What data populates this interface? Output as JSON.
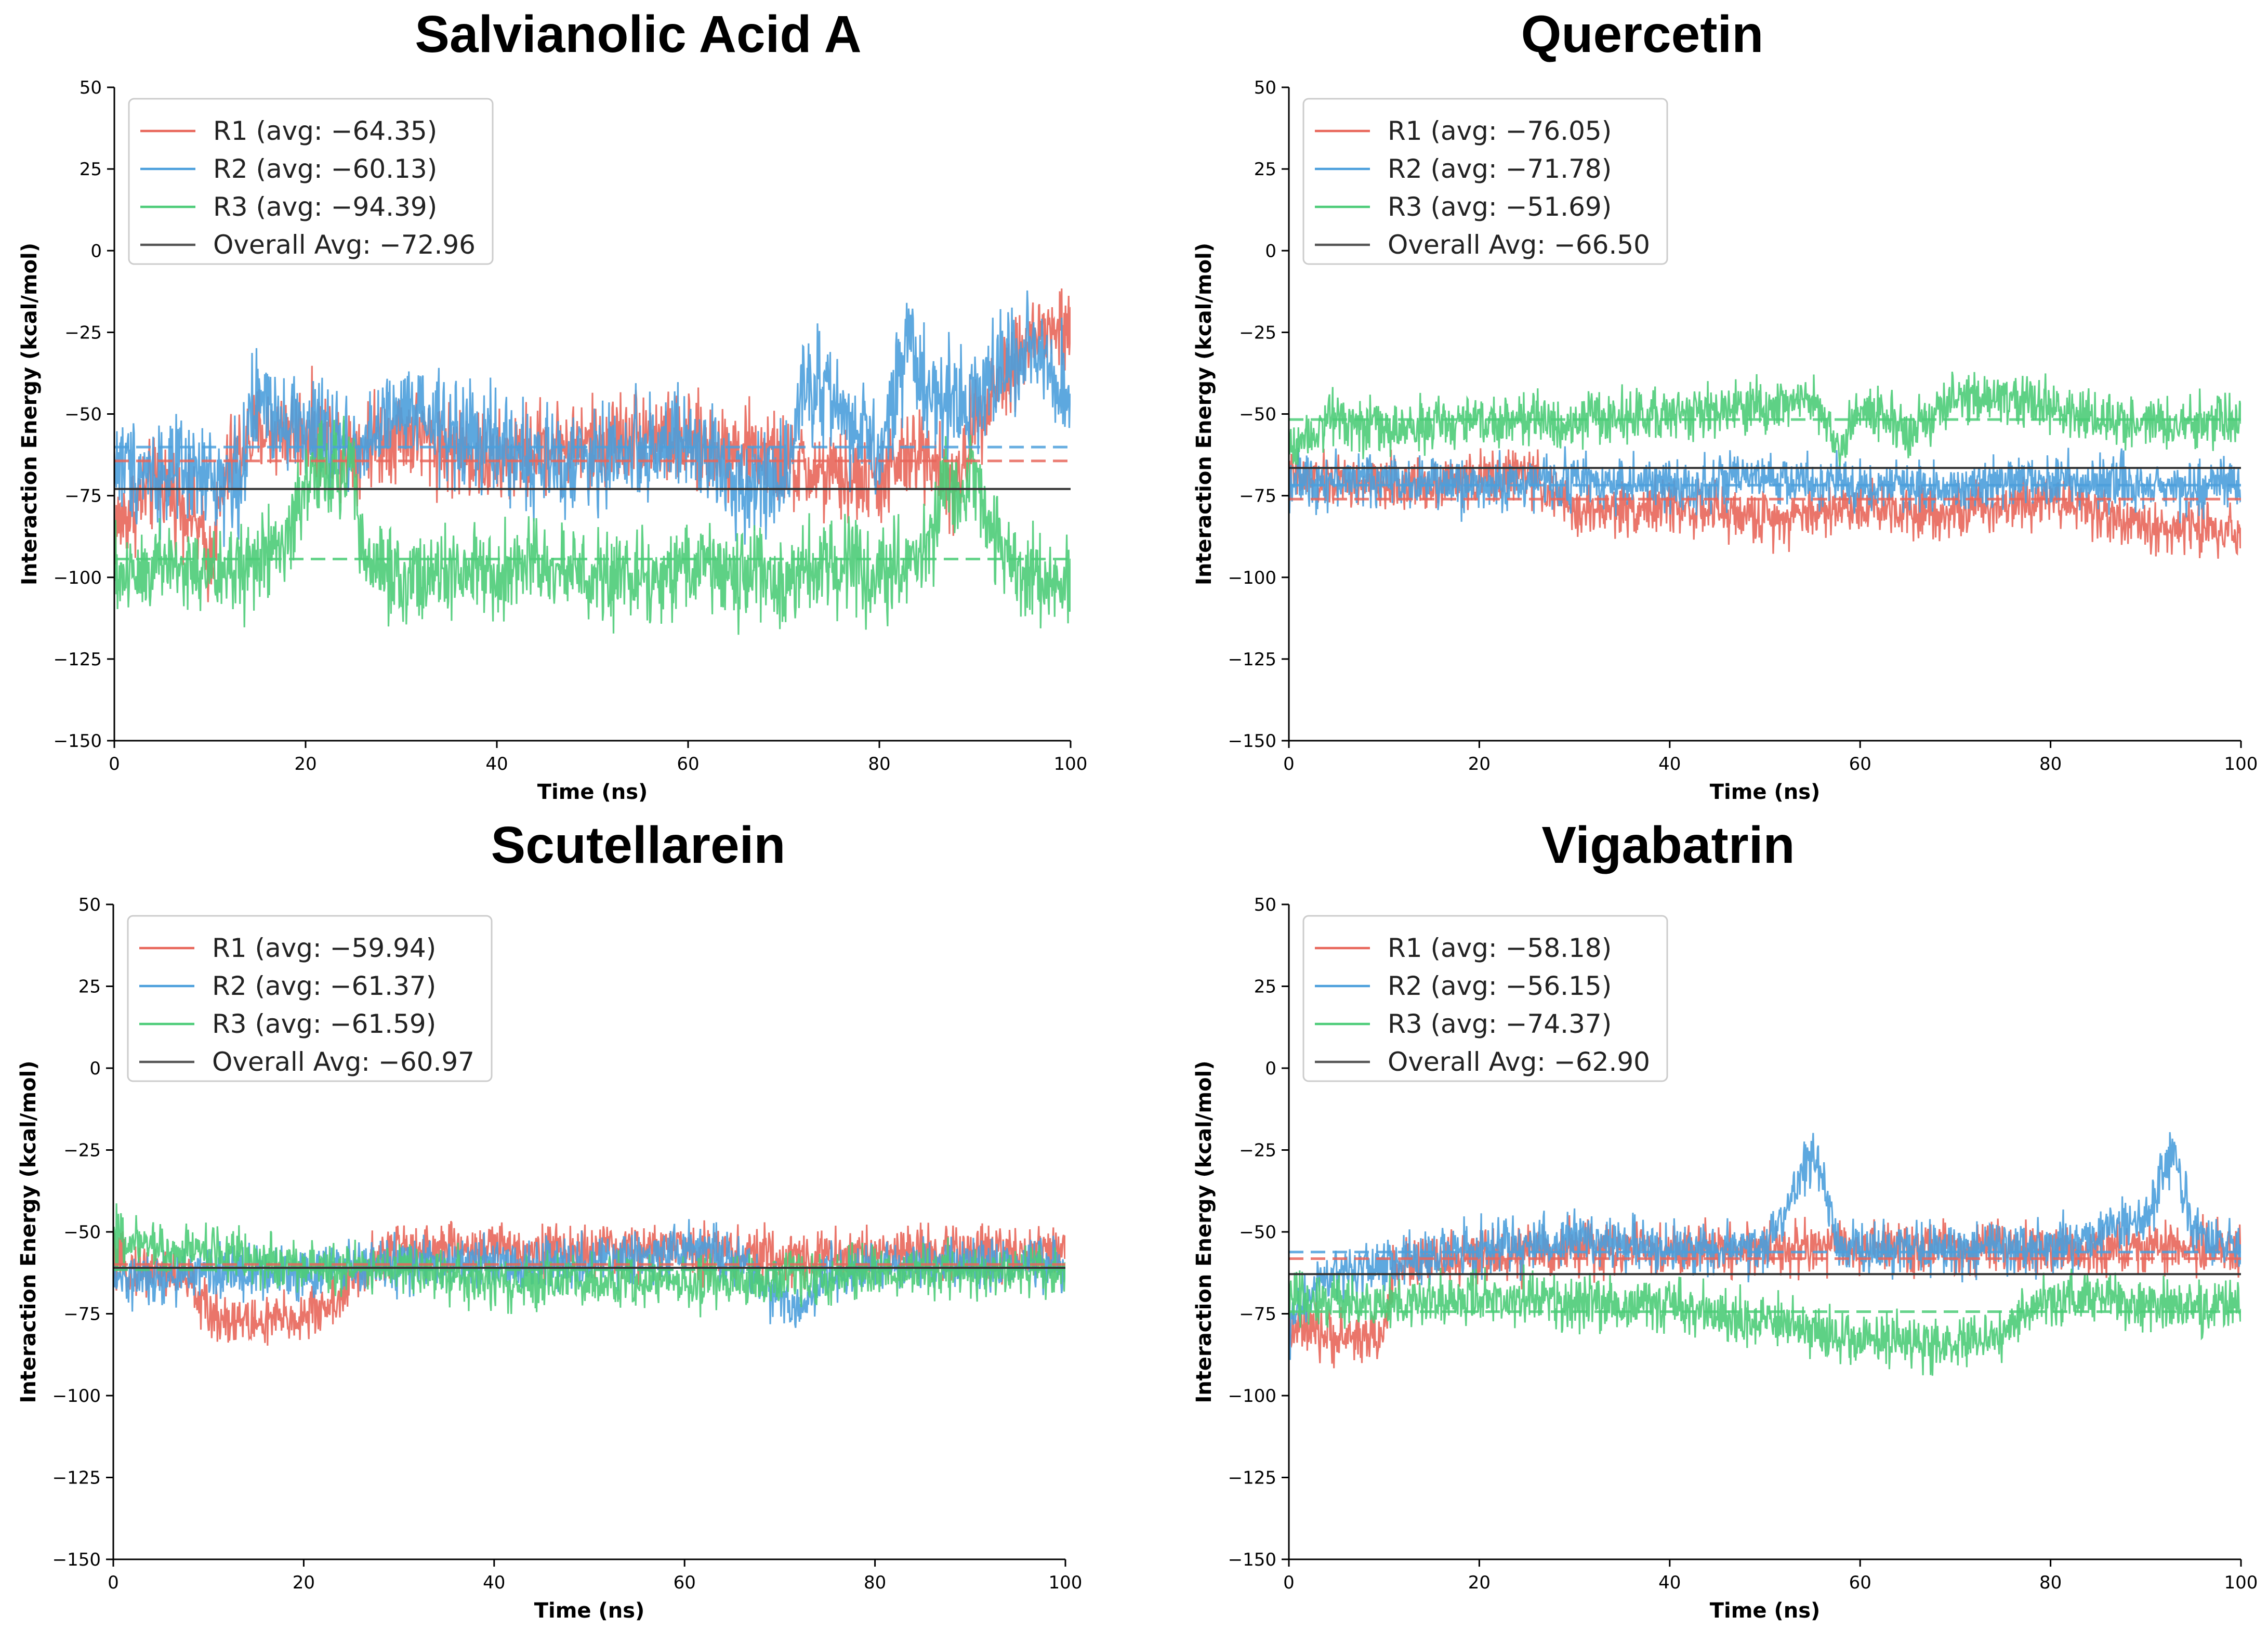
{
  "chart_data": [
    {
      "type": "line",
      "title": "Salvianolic Acid A",
      "xlabel": "Time (ns)",
      "ylabel": "Interaction Energy (kcal/mol)",
      "xlim": [
        0,
        100
      ],
      "ylim": [
        -150,
        50
      ],
      "x_ticks": [
        0,
        20,
        40,
        60,
        80,
        100
      ],
      "y_ticks": [
        50,
        25,
        0,
        -25,
        -50,
        -75,
        -100,
        -125,
        -150
      ],
      "legend_position": "top-left",
      "series": [
        {
          "name": "R1",
          "label": "R1 (avg: −64.35)",
          "color": "#e8665a",
          "avg": -64.35,
          "noise": 7,
          "x": [
            0,
            3,
            5,
            8,
            10,
            12,
            15,
            20,
            25,
            30,
            35,
            40,
            45,
            50,
            55,
            60,
            65,
            70,
            75,
            80,
            85,
            88,
            90,
            95,
            97,
            100
          ],
          "y": [
            -85,
            -75,
            -70,
            -80,
            -95,
            -65,
            -55,
            -55,
            -60,
            -55,
            -60,
            -65,
            -60,
            -60,
            -55,
            -60,
            -60,
            -65,
            -70,
            -70,
            -60,
            -75,
            -50,
            -30,
            -25,
            -25
          ]
        },
        {
          "name": "R2",
          "label": "R2 (avg: −60.13)",
          "color": "#4b9fdc",
          "avg": -60.13,
          "noise": 8,
          "x": [
            0,
            5,
            10,
            13,
            15,
            20,
            25,
            30,
            35,
            40,
            45,
            50,
            55,
            60,
            65,
            70,
            72,
            75,
            80,
            83,
            85,
            90,
            95,
            100
          ],
          "y": [
            -65,
            -68,
            -70,
            -70,
            -45,
            -55,
            -60,
            -50,
            -55,
            -60,
            -65,
            -65,
            -60,
            -60,
            -70,
            -70,
            -40,
            -45,
            -65,
            -25,
            -45,
            -45,
            -30,
            -45
          ]
        },
        {
          "name": "R3",
          "label": "R3 (avg: −94.39)",
          "color": "#4ccc78",
          "avg": -94.39,
          "noise": 7,
          "x": [
            0,
            5,
            10,
            15,
            18,
            20,
            25,
            26,
            30,
            35,
            40,
            45,
            50,
            55,
            60,
            65,
            70,
            75,
            80,
            85,
            87,
            90,
            93,
            95,
            100
          ],
          "y": [
            -100,
            -95,
            -100,
            -95,
            -90,
            -70,
            -65,
            -95,
            -100,
            -100,
            -100,
            -95,
            -100,
            -100,
            -95,
            -100,
            -100,
            -95,
            -100,
            -90,
            -70,
            -70,
            -95,
            -100,
            -100
          ]
        }
      ],
      "overall_avg": {
        "label": "Overall Avg: −72.96",
        "value": -72.96,
        "color": "#555555"
      }
    },
    {
      "type": "line",
      "title": "Quercetin",
      "xlabel": "Time (ns)",
      "ylabel": "Interaction Energy (kcal/mol)",
      "xlim": [
        0,
        100
      ],
      "ylim": [
        -150,
        50
      ],
      "x_ticks": [
        0,
        20,
        40,
        60,
        80,
        100
      ],
      "y_ticks": [
        50,
        25,
        0,
        -25,
        -50,
        -75,
        -100,
        -125,
        -150
      ],
      "legend_position": "top-left",
      "series": [
        {
          "name": "R1",
          "label": "R1 (avg: −76.05)",
          "color": "#e8665a",
          "avg": -76.05,
          "noise": 4,
          "x": [
            0,
            10,
            20,
            25,
            30,
            40,
            50,
            60,
            70,
            80,
            90,
            100
          ],
          "y": [
            -70,
            -72,
            -70,
            -68,
            -80,
            -78,
            -82,
            -78,
            -80,
            -75,
            -85,
            -85
          ]
        },
        {
          "name": "R2",
          "label": "R2 (avg: −71.78)",
          "color": "#4b9fdc",
          "avg": -71.78,
          "noise": 4,
          "x": [
            0,
            10,
            20,
            30,
            40,
            50,
            60,
            70,
            80,
            90,
            100
          ],
          "y": [
            -70,
            -70,
            -72,
            -70,
            -72,
            -70,
            -72,
            -72,
            -70,
            -72,
            -72
          ]
        },
        {
          "name": "R3",
          "label": "R3 (avg: −51.69)",
          "color": "#4ccc78",
          "avg": -51.69,
          "noise": 4,
          "x": [
            0,
            5,
            10,
            20,
            30,
            40,
            50,
            55,
            58,
            60,
            65,
            70,
            75,
            80,
            85,
            90,
            100
          ],
          "y": [
            -60,
            -50,
            -55,
            -52,
            -52,
            -50,
            -48,
            -45,
            -60,
            -48,
            -55,
            -45,
            -45,
            -48,
            -52,
            -52,
            -52
          ]
        }
      ],
      "overall_avg": {
        "label": "Overall Avg: −66.50",
        "value": -66.5,
        "color": "#555555"
      }
    },
    {
      "type": "line",
      "title": "Scutellarein",
      "xlabel": "Time (ns)",
      "ylabel": "Interaction Energy (kcal/mol)",
      "xlim": [
        0,
        100
      ],
      "ylim": [
        -150,
        50
      ],
      "x_ticks": [
        0,
        20,
        40,
        60,
        80,
        100
      ],
      "y_ticks": [
        50,
        25,
        0,
        -25,
        -50,
        -75,
        -100,
        -125,
        -150
      ],
      "legend_position": "top-left",
      "series": [
        {
          "name": "R1",
          "label": "R1 (avg: −59.94)",
          "color": "#e8665a",
          "avg": -59.94,
          "noise": 4,
          "x": [
            0,
            5,
            8,
            10,
            15,
            20,
            24,
            26,
            30,
            40,
            50,
            60,
            70,
            80,
            90,
            100
          ],
          "y": [
            -60,
            -62,
            -65,
            -75,
            -78,
            -76,
            -70,
            -62,
            -55,
            -55,
            -56,
            -55,
            -58,
            -56,
            -56,
            -55
          ]
        },
        {
          "name": "R2",
          "label": "R2 (avg: −61.37)",
          "color": "#4b9fdc",
          "avg": -61.37,
          "noise": 4,
          "x": [
            0,
            5,
            10,
            20,
            30,
            40,
            50,
            60,
            65,
            70,
            72,
            75,
            80,
            90,
            100
          ],
          "y": [
            -65,
            -65,
            -62,
            -62,
            -60,
            -60,
            -60,
            -55,
            -58,
            -70,
            -75,
            -62,
            -60,
            -60,
            -60
          ]
        },
        {
          "name": "R3",
          "label": "R3 (avg: −61.59)",
          "color": "#4ccc78",
          "avg": -61.59,
          "noise": 4,
          "x": [
            0,
            5,
            10,
            15,
            20,
            30,
            40,
            50,
            60,
            70,
            80,
            90,
            100
          ],
          "y": [
            -52,
            -55,
            -55,
            -58,
            -60,
            -62,
            -65,
            -65,
            -65,
            -65,
            -62,
            -62,
            -62
          ]
        }
      ],
      "overall_avg": {
        "label": "Overall Avg: −60.97",
        "value": -60.97,
        "color": "#555555"
      }
    },
    {
      "type": "line",
      "title": "Vigabatrin",
      "xlabel": "Time (ns)",
      "ylabel": "Interaction Energy (kcal/mol)",
      "xlim": [
        0,
        100
      ],
      "ylim": [
        -150,
        50
      ],
      "x_ticks": [
        0,
        20,
        40,
        60,
        80,
        100
      ],
      "y_ticks": [
        50,
        25,
        0,
        -25,
        -50,
        -75,
        -100,
        -125,
        -150
      ],
      "legend_position": "top-left",
      "series": [
        {
          "name": "R1",
          "label": "R1 (avg: −58.18)",
          "color": "#e8665a",
          "avg": -58.18,
          "noise": 4,
          "x": [
            0,
            5,
            10,
            11,
            20,
            30,
            40,
            50,
            60,
            70,
            80,
            90,
            100
          ],
          "y": [
            -80,
            -82,
            -82,
            -60,
            -58,
            -55,
            -56,
            -55,
            -55,
            -55,
            -56,
            -55,
            -55
          ]
        },
        {
          "name": "R2",
          "label": "R2 (avg: −56.15)",
          "color": "#4b9fdc",
          "avg": -56.15,
          "noise": 4,
          "x": [
            0,
            3,
            10,
            20,
            30,
            40,
            50,
            55,
            58,
            60,
            70,
            80,
            90,
            93,
            95,
            100
          ],
          "y": [
            -80,
            -65,
            -60,
            -55,
            -52,
            -55,
            -55,
            -25,
            -55,
            -55,
            -55,
            -55,
            -45,
            -25,
            -50,
            -55
          ]
        },
        {
          "name": "R3",
          "label": "R3 (avg: −74.37)",
          "color": "#4ccc78",
          "avg": -74.37,
          "noise": 4,
          "x": [
            0,
            10,
            20,
            30,
            40,
            50,
            60,
            70,
            75,
            80,
            90,
            100
          ],
          "y": [
            -70,
            -72,
            -70,
            -72,
            -72,
            -78,
            -82,
            -85,
            -80,
            -70,
            -72,
            -72
          ]
        }
      ],
      "overall_avg": {
        "label": "Overall Avg: −62.90",
        "value": -62.9,
        "color": "#555555"
      }
    }
  ]
}
